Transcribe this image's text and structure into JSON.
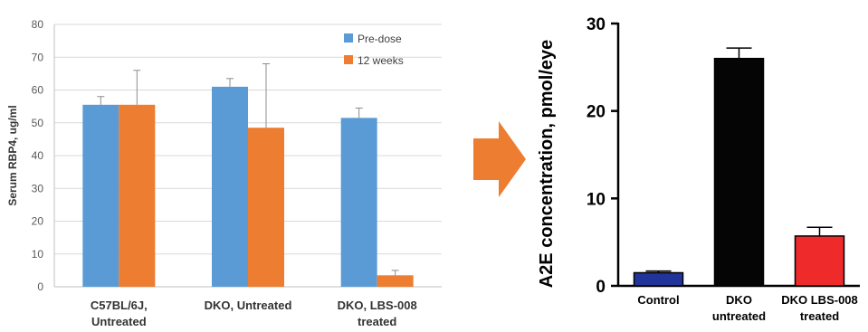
{
  "chart_data": [
    {
      "type": "bar",
      "ylabel": "Serum RBP4, ug/ml",
      "ylim": [
        0,
        80
      ],
      "yticks": [
        0,
        10,
        20,
        30,
        40,
        50,
        60,
        70,
        80
      ],
      "grid": true,
      "legend_position": "top-right",
      "categories": [
        [
          "C57BL/6J,",
          "Untreated"
        ],
        [
          "DKO, Untreated"
        ],
        [
          "DKO,  LBS-008",
          "treated"
        ]
      ],
      "series": [
        {
          "name": "Pre-dose",
          "color": "#5b9bd5",
          "values": [
            55.5,
            61,
            51.5
          ],
          "error": [
            2.5,
            2.5,
            3
          ]
        },
        {
          "name": "12 weeks",
          "color": "#ed7d31",
          "values": [
            55.5,
            48.5,
            3.5
          ],
          "error": [
            10.5,
            19.5,
            1.5
          ]
        }
      ]
    },
    {
      "type": "bar",
      "ylabel": "A2E concentration, pmol/eye",
      "ylim": [
        0,
        30
      ],
      "yticks": [
        0,
        10,
        20,
        30
      ],
      "grid": false,
      "categories": [
        [
          "Control"
        ],
        [
          "DKO",
          "untreated"
        ],
        [
          "DKO LBS-008",
          "treated"
        ]
      ],
      "values": [
        1.5,
        26,
        5.7
      ],
      "error": [
        0.2,
        1.2,
        1.0
      ],
      "colors": [
        "#22349a",
        "#050505",
        "#ee2a2a"
      ]
    }
  ],
  "arrow": {
    "icon": "arrow-right-icon",
    "color": "#ed7d31"
  }
}
